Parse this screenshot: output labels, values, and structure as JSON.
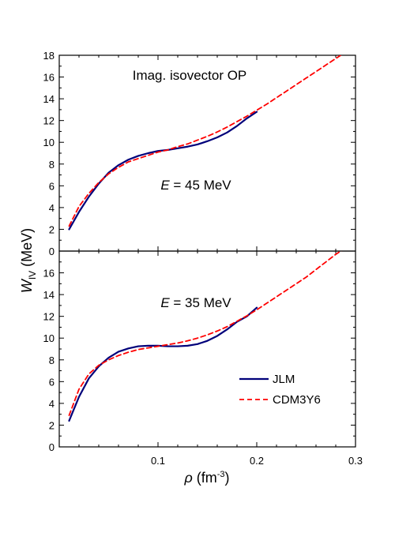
{
  "chart_data": [
    {
      "type": "line",
      "panel": "top",
      "title": "Imag. isovector OP",
      "annotation": {
        "italic": "E",
        "rest": " = 45 MeV"
      },
      "xlim": [
        0,
        0.3
      ],
      "ylim": [
        0,
        18
      ],
      "yticks": [
        0,
        2,
        4,
        6,
        8,
        10,
        12,
        14,
        16,
        18
      ],
      "series": [
        {
          "name": "JLM",
          "color": "#00007a",
          "dash": "solid",
          "x": [
            0.01,
            0.02,
            0.03,
            0.04,
            0.05,
            0.06,
            0.07,
            0.08,
            0.09,
            0.1,
            0.11,
            0.12,
            0.13,
            0.14,
            0.15,
            0.16,
            0.17,
            0.18,
            0.19,
            0.2
          ],
          "y": [
            2.0,
            3.6,
            5.0,
            6.2,
            7.2,
            7.9,
            8.4,
            8.75,
            9.0,
            9.2,
            9.3,
            9.45,
            9.6,
            9.8,
            10.1,
            10.45,
            10.9,
            11.5,
            12.2,
            12.8
          ]
        },
        {
          "name": "CDM3Y6",
          "color": "#ff0000",
          "dash": "dashed",
          "x": [
            0.01,
            0.02,
            0.03,
            0.04,
            0.05,
            0.06,
            0.07,
            0.08,
            0.09,
            0.1,
            0.11,
            0.12,
            0.13,
            0.14,
            0.15,
            0.16,
            0.17,
            0.18,
            0.19,
            0.2,
            0.21,
            0.22,
            0.23,
            0.24,
            0.25,
            0.26,
            0.27,
            0.28,
            0.29
          ],
          "y": [
            2.3,
            4.1,
            5.3,
            6.3,
            7.1,
            7.7,
            8.2,
            8.5,
            8.8,
            9.1,
            9.3,
            9.6,
            9.85,
            10.2,
            10.55,
            10.95,
            11.4,
            11.9,
            12.4,
            12.95,
            13.5,
            14.1,
            14.7,
            15.3,
            15.9,
            16.5,
            17.1,
            17.7,
            18.3
          ]
        }
      ]
    },
    {
      "type": "line",
      "panel": "bottom",
      "annotation": {
        "italic": "E",
        "rest": " = 35 MeV"
      },
      "xlim": [
        0,
        0.3
      ],
      "ylim": [
        0,
        18
      ],
      "yticks": [
        0,
        2,
        4,
        6,
        8,
        10,
        12,
        14,
        16
      ],
      "xticks": [
        0.1,
        0.2,
        0.3
      ],
      "series": [
        {
          "name": "JLM",
          "color": "#00007a",
          "dash": "solid",
          "x": [
            0.01,
            0.02,
            0.03,
            0.04,
            0.05,
            0.06,
            0.07,
            0.08,
            0.09,
            0.1,
            0.11,
            0.12,
            0.13,
            0.14,
            0.15,
            0.16,
            0.17,
            0.18,
            0.19,
            0.2
          ],
          "y": [
            2.4,
            4.6,
            6.3,
            7.4,
            8.2,
            8.75,
            9.05,
            9.25,
            9.3,
            9.3,
            9.25,
            9.25,
            9.3,
            9.45,
            9.75,
            10.2,
            10.8,
            11.5,
            12.0,
            12.8
          ]
        },
        {
          "name": "CDM3Y6",
          "color": "#ff0000",
          "dash": "dashed",
          "x": [
            0.01,
            0.02,
            0.03,
            0.04,
            0.05,
            0.06,
            0.07,
            0.08,
            0.09,
            0.1,
            0.11,
            0.12,
            0.13,
            0.14,
            0.15,
            0.16,
            0.17,
            0.18,
            0.19,
            0.2,
            0.21,
            0.22,
            0.23,
            0.24,
            0.25,
            0.26,
            0.27,
            0.28,
            0.29
          ],
          "y": [
            2.9,
            5.3,
            6.7,
            7.5,
            8.0,
            8.4,
            8.7,
            8.95,
            9.1,
            9.25,
            9.4,
            9.55,
            9.75,
            10.0,
            10.3,
            10.65,
            11.05,
            11.55,
            12.05,
            12.6,
            13.2,
            13.8,
            14.4,
            15.0,
            15.6,
            16.3,
            17.0,
            17.7,
            18.3
          ]
        }
      ]
    }
  ],
  "axes": {
    "ylabel": {
      "main": "W",
      "sub": "IV",
      "rest": " (MeV)"
    },
    "xlabel": {
      "main": "ρ",
      "rest": " (fm",
      "sup": "-3",
      "close": ")"
    }
  },
  "legend": [
    {
      "name": "JLM",
      "color": "#00007a",
      "dash": "solid"
    },
    {
      "name": "CDM3Y6",
      "color": "#ff0000",
      "dash": "dashed"
    }
  ]
}
